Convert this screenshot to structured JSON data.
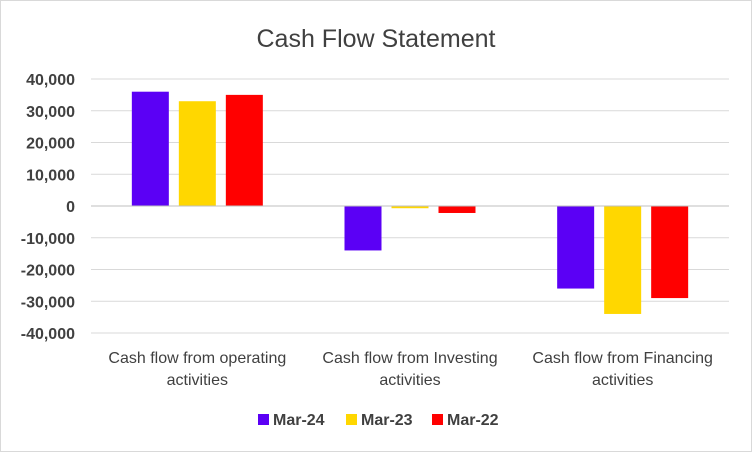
{
  "chart_data": {
    "type": "bar",
    "title": "Cash Flow Statement",
    "categories": [
      [
        "Cash flow from operating",
        "activities"
      ],
      [
        "Cash flow from Investing",
        "activities"
      ],
      [
        "Cash flow from Financing",
        "activities"
      ]
    ],
    "series": [
      {
        "name": "Mar-24",
        "color": "#5b00f5",
        "values": [
          36000,
          -14000,
          -26000
        ]
      },
      {
        "name": "Mar-23",
        "color": "#ffd700",
        "values": [
          33000,
          -700,
          -34000
        ]
      },
      {
        "name": "Mar-22",
        "color": "#ff0000",
        "values": [
          35000,
          -2200,
          -29000
        ]
      }
    ],
    "yticks": [
      "40,000",
      "30,000",
      "20,000",
      "10,000",
      "0",
      "-10,000",
      "-20,000",
      "-30,000",
      "-40,000"
    ],
    "ylim": [
      -40000,
      40000
    ],
    "grid": true,
    "legend": "bottom-center",
    "xlabel": "",
    "ylabel": ""
  }
}
